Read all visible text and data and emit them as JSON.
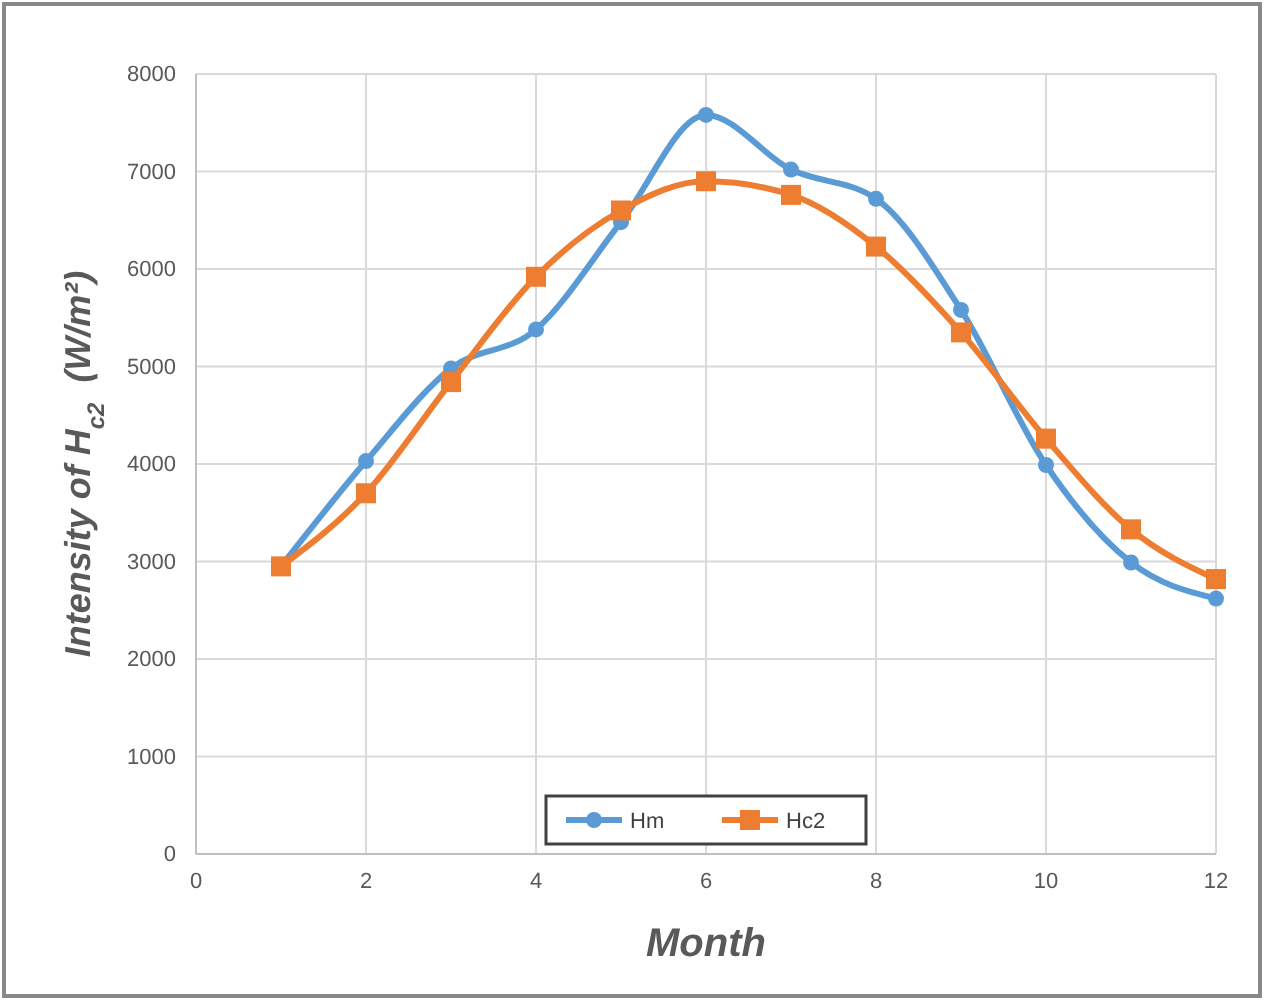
{
  "chart_data": {
    "type": "line",
    "xlabel": "Month",
    "ylabel": "Intensity of H$_{c2}$  (W/m²)",
    "x": [
      1,
      2,
      3,
      4,
      5,
      6,
      7,
      8,
      9,
      10,
      11,
      12
    ],
    "series": [
      {
        "name": "Hm",
        "color": "#5b9bd5",
        "marker": "circle",
        "values": [
          2950,
          4030,
          4980,
          5380,
          6480,
          7580,
          7020,
          6720,
          5580,
          3990,
          2990,
          2620
        ]
      },
      {
        "name": "Hc2",
        "color": "#ed7d31",
        "marker": "square",
        "values": [
          2950,
          3700,
          4840,
          5920,
          6600,
          6900,
          6760,
          6230,
          5350,
          4260,
          3330,
          2820
        ]
      }
    ],
    "xlim": [
      0,
      12
    ],
    "xticks": [
      0,
      2,
      4,
      6,
      8,
      10,
      12
    ],
    "ylim": [
      0,
      8000
    ],
    "yticks": [
      0,
      1000,
      2000,
      3000,
      4000,
      5000,
      6000,
      7000,
      8000
    ],
    "grid": true,
    "legend": "bottom",
    "line_style": "solid"
  }
}
